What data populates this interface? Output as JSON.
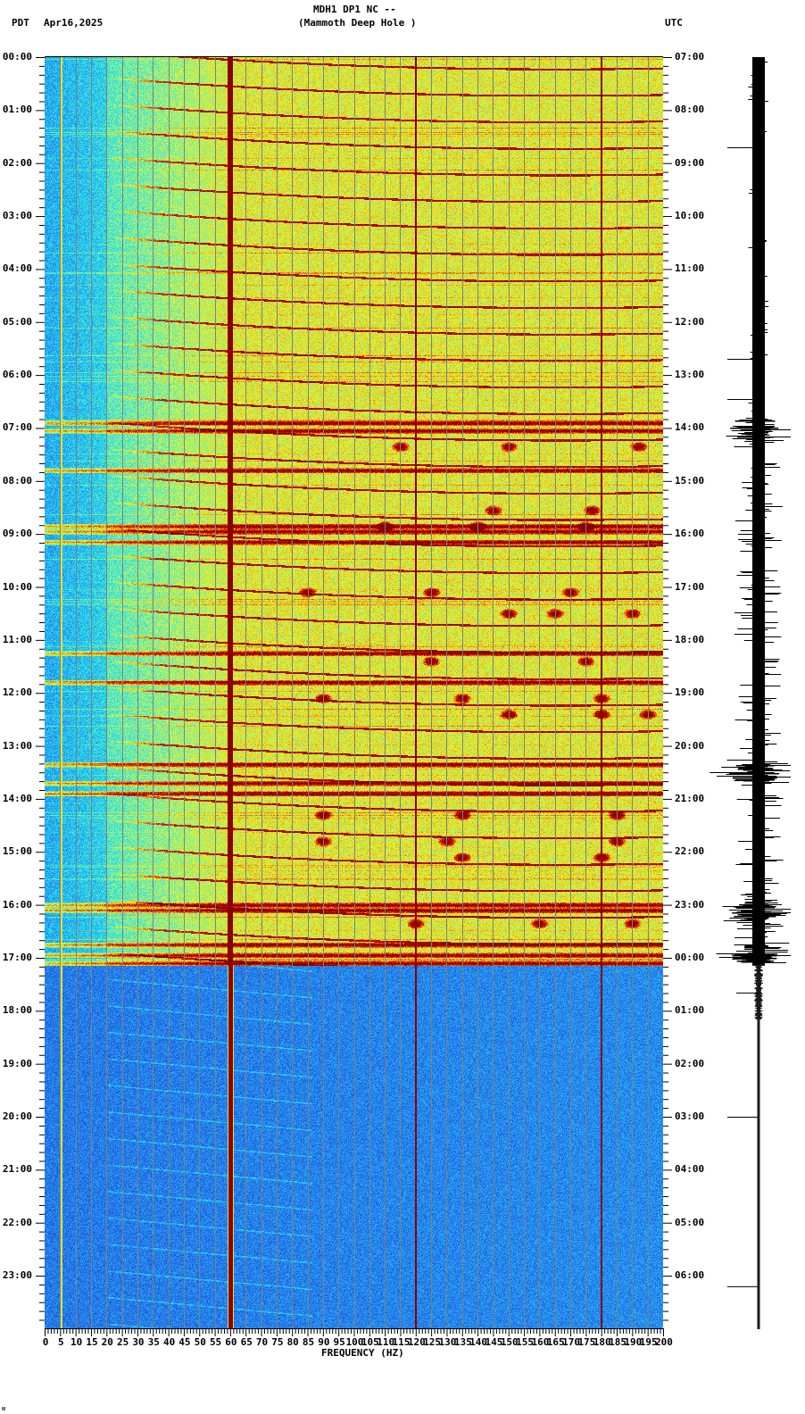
{
  "header": {
    "station_line": "MDH1 DP1 NC --",
    "station_name": "(Mammoth Deep Hole )",
    "left_timezone": "PDT",
    "date": "Apr16,2025",
    "right_timezone": "UTC"
  },
  "footer": {
    "corner_mark": "ᴍ"
  },
  "chart_data": {
    "type": "heatmap",
    "subtype": "spectrogram_with_seismogram",
    "title": "MDH1 DP1 NC -- (Mammoth Deep Hole )",
    "date": "Apr16,2025",
    "xlabel": "FREQUENCY (HZ)",
    "ylabel_left": "PDT",
    "ylabel_right": "UTC",
    "xlim": [
      0,
      200
    ],
    "x_ticks": [
      0,
      5,
      10,
      15,
      20,
      25,
      30,
      35,
      40,
      45,
      50,
      55,
      60,
      65,
      70,
      75,
      80,
      85,
      90,
      95,
      100,
      105,
      110,
      115,
      120,
      125,
      130,
      135,
      140,
      145,
      150,
      155,
      160,
      165,
      170,
      175,
      180,
      185,
      190,
      195,
      200
    ],
    "y_ticks_left": [
      "00:00",
      "01:00",
      "02:00",
      "03:00",
      "04:00",
      "05:00",
      "06:00",
      "07:00",
      "08:00",
      "09:00",
      "10:00",
      "11:00",
      "12:00",
      "13:00",
      "14:00",
      "15:00",
      "16:00",
      "17:00",
      "18:00",
      "19:00",
      "20:00",
      "21:00",
      "22:00",
      "23:00"
    ],
    "y_ticks_right": [
      "07:00",
      "08:00",
      "09:00",
      "10:00",
      "11:00",
      "12:00",
      "13:00",
      "14:00",
      "15:00",
      "16:00",
      "17:00",
      "18:00",
      "19:00",
      "20:00",
      "21:00",
      "22:00",
      "23:00",
      "00:00",
      "01:00",
      "02:00",
      "03:00",
      "04:00",
      "05:00",
      "06:00"
    ],
    "y_minor_ticks_per_hour": 6,
    "colormap": [
      "#1a4fd6",
      "#2a8cf0",
      "#1fd8f0",
      "#7df0a0",
      "#f0f020",
      "#f08a10",
      "#d01010",
      "#8a0000"
    ],
    "grid": {
      "vertical_every_hz": 5,
      "color": "#808080"
    },
    "persistent_lines_hz": [
      {
        "freq": 60,
        "color": "#8a0000",
        "description": "strong 60 Hz power-line band"
      },
      {
        "freq": 120,
        "color": "#8a0000",
        "description": "120 Hz harmonic"
      },
      {
        "freq": 180,
        "color": "#8a0000",
        "description": "180 Hz harmonic"
      },
      {
        "freq": 5.5,
        "color": "#d8e040",
        "description": "faint low-frequency line"
      }
    ],
    "segments": [
      {
        "from_hour": 0,
        "to_hour": 17.15,
        "level": "high",
        "description": "energetic, mostly cyan-yellow background with red chirp streaks"
      },
      {
        "from_hour": 17.15,
        "to_hour": 24,
        "level": "low",
        "description": "quiet, blue background with faint chirps"
      }
    ],
    "high_noise_bands_hours": [
      6.9,
      7.05,
      7.8,
      8.85,
      8.95,
      9.15,
      11.25,
      11.8,
      13.35,
      13.7,
      13.9,
      16.0,
      16.1,
      16.75,
      16.95,
      17.1
    ],
    "events": [
      {
        "hour": 7.35,
        "freqs_hz": [
          115,
          150,
          192
        ],
        "description": "dark red event blobs"
      },
      {
        "hour": 8.55,
        "freqs_hz": [
          145,
          177
        ],
        "description": "horizontal red bursts"
      },
      {
        "hour": 8.85,
        "freqs_hz": [
          110,
          140,
          175
        ],
        "description": "red bursts"
      },
      {
        "hour": 10.1,
        "freqs_hz": [
          85,
          125,
          170
        ],
        "description": "small red events"
      },
      {
        "hour": 10.5,
        "freqs_hz": [
          150,
          165,
          190
        ],
        "description": "horizontal red streaks"
      },
      {
        "hour": 11.4,
        "freqs_hz": [
          125,
          175
        ],
        "description": "chirp events"
      },
      {
        "hour": 12.1,
        "freqs_hz": [
          90,
          135,
          180
        ],
        "description": "red events"
      },
      {
        "hour": 12.4,
        "freqs_hz": [
          150,
          180,
          195
        ],
        "description": "red streaks"
      },
      {
        "hour": 14.3,
        "freqs_hz": [
          90,
          135,
          185
        ],
        "description": "diagonal red events"
      },
      {
        "hour": 14.8,
        "freqs_hz": [
          90,
          130,
          185
        ],
        "description": "red events"
      },
      {
        "hour": 15.1,
        "freqs_hz": [
          135,
          180
        ],
        "description": "red events"
      },
      {
        "hour": 16.35,
        "freqs_hz": [
          120,
          160,
          190
        ],
        "description": "red blobs"
      }
    ],
    "seismogram": {
      "position": "right",
      "active_until_hour": 17.15,
      "large_bursts_hours": [
        7.0,
        13.5,
        16.1,
        16.9
      ],
      "description": "black amplitude trace; wide and noisy until ~17:10 PDT, then thin line"
    }
  }
}
